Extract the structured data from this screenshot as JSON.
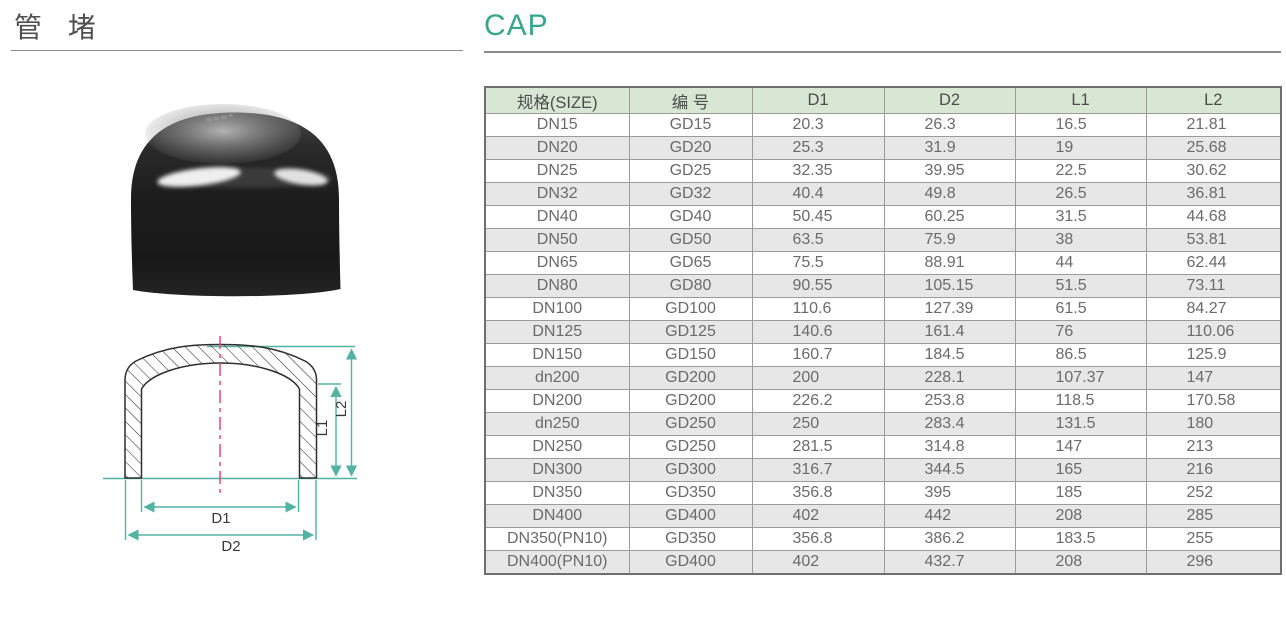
{
  "colors": {
    "teal": "#35a78d",
    "teal_line": "#52b3a2",
    "pink": "#e8457f",
    "header_bg": "#d8e7d3",
    "row_alt_bg": "#e7e7e7",
    "grid_border": "#9b9b9b",
    "title_text": "#4f4f4f",
    "cell_text": "#6b6b6b"
  },
  "header": {
    "title_cn": "管 堵",
    "title_en": "CAP"
  },
  "diagram": {
    "labels": {
      "d1": "D1",
      "d2": "D2",
      "l1": "L1",
      "l2": "L2"
    }
  },
  "table": {
    "headers": [
      "规格(SIZE)",
      "编 号",
      "D1",
      "D2",
      "L1",
      "L2"
    ],
    "rows": [
      [
        "DN15",
        "GD15",
        "20.3",
        "26.3",
        "16.5",
        "21.81"
      ],
      [
        "DN20",
        "GD20",
        "25.3",
        "31.9",
        "19",
        "25.68"
      ],
      [
        "DN25",
        "GD25",
        "32.35",
        "39.95",
        "22.5",
        "30.62"
      ],
      [
        "DN32",
        "GD32",
        "40.4",
        "49.8",
        "26.5",
        "36.81"
      ],
      [
        "DN40",
        "GD40",
        "50.45",
        "60.25",
        "31.5",
        "44.68"
      ],
      [
        "DN50",
        "GD50",
        "63.5",
        "75.9",
        "38",
        "53.81"
      ],
      [
        "DN65",
        "GD65",
        "75.5",
        "88.91",
        "44",
        "62.44"
      ],
      [
        "DN80",
        "GD80",
        "90.55",
        "105.15",
        "51.5",
        "73.11"
      ],
      [
        "DN100",
        "GD100",
        "110.6",
        "127.39",
        "61.5",
        "84.27"
      ],
      [
        "DN125",
        "GD125",
        "140.6",
        "161.4",
        "76",
        "110.06"
      ],
      [
        "DN150",
        "GD150",
        "160.7",
        "184.5",
        "86.5",
        "125.9"
      ],
      [
        "dn200",
        "GD200",
        "200",
        "228.1",
        "107.37",
        "147"
      ],
      [
        "DN200",
        "GD200",
        "226.2",
        "253.8",
        "118.5",
        "170.58"
      ],
      [
        "dn250",
        "GD250",
        "250",
        "283.4",
        "131.5",
        "180"
      ],
      [
        "DN250",
        "GD250",
        "281.5",
        "314.8",
        "147",
        "213"
      ],
      [
        "DN300",
        "GD300",
        "316.7",
        "344.5",
        "165",
        "216"
      ],
      [
        "DN350",
        "GD350",
        "356.8",
        "395",
        "185",
        "252"
      ],
      [
        "DN400",
        "GD400",
        "402",
        "442",
        "208",
        "285"
      ],
      [
        "DN350(PN10)",
        "GD350",
        "356.8",
        "386.2",
        "183.5",
        "255"
      ],
      [
        "DN400(PN10)",
        "GD400",
        "402",
        "432.7",
        "208",
        "296"
      ]
    ]
  }
}
